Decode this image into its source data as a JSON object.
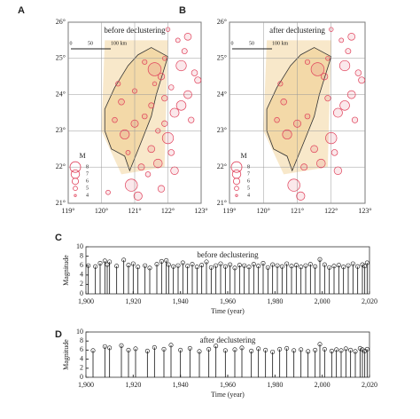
{
  "chart_data": [
    {
      "type": "scatter",
      "panel": "A",
      "title": "before declustering",
      "xlim": [
        119,
        123
      ],
      "ylim": [
        21,
        26
      ],
      "xticks": [
        {
          "value": 119,
          "label": "119°"
        },
        {
          "value": 120,
          "label": "120°"
        },
        {
          "value": 121,
          "label": "121°"
        },
        {
          "value": 122,
          "label": "122°"
        },
        {
          "value": 123,
          "label": "123°"
        }
      ],
      "yticks": [
        {
          "value": 21,
          "label": "21°"
        },
        {
          "value": 22,
          "label": "22°"
        },
        {
          "value": 23,
          "label": "23°"
        },
        {
          "value": 24,
          "label": "24°"
        },
        {
          "value": 25,
          "label": "25°"
        },
        {
          "value": 26,
          "label": "26°"
        }
      ],
      "grid": true,
      "color": "#e0405a",
      "scale_bar": [
        "0",
        "50",
        "100 km"
      ],
      "size_legend": {
        "title": "M",
        "values": [
          8,
          7,
          6,
          5,
          4
        ]
      },
      "x": [
        121.8,
        122.1,
        122.4,
        121.9,
        122.6,
        121.6,
        122.2,
        122.8,
        121.7,
        122.0,
        122.5,
        121.5,
        122.3,
        121.2,
        120.9,
        121.4,
        121.0,
        121.3,
        120.6,
        121.1,
        120.8,
        121.6,
        122.7,
        122.9,
        121.9,
        122.2,
        120.4,
        121.5,
        120.7,
        121.0,
        122.1,
        121.8,
        120.2,
        122.4,
        121.3,
        122.6,
        121.9,
        120.5,
        121.7,
        122.0
      ],
      "y": [
        24.5,
        24.2,
        24.8,
        23.9,
        24.0,
        24.3,
        23.5,
        24.6,
        23.0,
        22.8,
        25.2,
        22.5,
        25.5,
        22.0,
        21.5,
        21.8,
        23.2,
        24.9,
        23.8,
        21.2,
        22.4,
        24.7,
        23.3,
        24.4,
        25.0,
        21.9,
        23.3,
        23.7,
        22.9,
        24.1,
        22.4,
        21.4,
        21.3,
        23.7,
        23.4,
        25.6,
        23.2,
        24.3,
        22.1,
        25.8
      ],
      "sizes": [
        5.1,
        4.6,
        6.2,
        4.8,
        5.5,
        4.3,
        5.8,
        4.9,
        4.5,
        6.5,
        4.7,
        5.2,
        4.4,
        5.0,
        6.8,
        4.6,
        5.3,
        4.5,
        4.9,
        5.6,
        4.4,
        7.1,
        4.8,
        5.0,
        4.3,
        5.4,
        4.6,
        4.7,
        5.9,
        4.5,
        4.9,
        5.1,
        4.4,
        6.0,
        4.6,
        5.2,
        4.8,
        4.5,
        5.7,
        4.3
      ]
    },
    {
      "type": "scatter",
      "panel": "B",
      "title": "after declustering",
      "xlim": [
        119,
        123
      ],
      "ylim": [
        21,
        26
      ],
      "xticks": [
        {
          "value": 119,
          "label": "119°"
        },
        {
          "value": 120,
          "label": "120°"
        },
        {
          "value": 121,
          "label": "121°"
        },
        {
          "value": 122,
          "label": "122°"
        },
        {
          "value": 123,
          "label": "123°"
        }
      ],
      "yticks": [
        {
          "value": 21,
          "label": "21°"
        },
        {
          "value": 22,
          "label": "22°"
        },
        {
          "value": 23,
          "label": "23°"
        },
        {
          "value": 24,
          "label": "24°"
        },
        {
          "value": 25,
          "label": "25°"
        },
        {
          "value": 26,
          "label": "26°"
        }
      ],
      "grid": true,
      "color": "#e0405a",
      "scale_bar": [
        "0",
        "50",
        "100 km"
      ],
      "size_legend": {
        "title": "M",
        "values": [
          8,
          7,
          6,
          5,
          4
        ]
      },
      "x": [
        121.8,
        122.4,
        121.9,
        122.6,
        122.2,
        122.8,
        122.0,
        122.5,
        121.5,
        122.3,
        121.2,
        120.9,
        121.0,
        121.3,
        120.6,
        121.1,
        121.6,
        122.7,
        122.9,
        121.9,
        122.2,
        120.4,
        120.7,
        122.1,
        122.4,
        121.3,
        122.6,
        120.5,
        121.7,
        122.0
      ],
      "y": [
        24.5,
        24.8,
        23.9,
        24.0,
        23.5,
        24.6,
        22.8,
        25.2,
        22.5,
        25.5,
        22.0,
        21.5,
        23.2,
        24.9,
        23.8,
        21.2,
        24.7,
        23.3,
        24.4,
        25.0,
        21.9,
        23.3,
        22.9,
        22.4,
        23.7,
        23.4,
        25.6,
        24.3,
        22.1,
        25.8
      ],
      "sizes": [
        5.1,
        6.2,
        4.8,
        5.5,
        5.8,
        4.9,
        6.5,
        4.7,
        5.2,
        4.4,
        5.0,
        6.8,
        5.3,
        4.5,
        4.9,
        5.6,
        7.1,
        4.8,
        5.0,
        4.3,
        5.4,
        4.6,
        5.9,
        4.9,
        6.0,
        4.6,
        5.2,
        4.5,
        5.7,
        4.3
      ]
    },
    {
      "type": "stem",
      "panel": "C",
      "title": "before declustering",
      "xlabel": "Time (year)",
      "ylabel": "Magnitude",
      "xlim": [
        1900,
        2020
      ],
      "ylim": [
        0,
        10
      ],
      "xticks": [
        {
          "value": 1900,
          "label": "1,900"
        },
        {
          "value": 1920,
          "label": "1,920"
        },
        {
          "value": 1940,
          "label": "1,940"
        },
        {
          "value": 1960,
          "label": "1,960"
        },
        {
          "value": 1980,
          "label": "1,980"
        },
        {
          "value": 2000,
          "label": "2,000"
        },
        {
          "value": 2020,
          "label": "2,020"
        }
      ],
      "yticks": [
        0,
        2,
        4,
        6,
        8,
        10
      ],
      "x": [
        1901,
        1904,
        1906,
        1908,
        1909,
        1910,
        1913,
        1916,
        1918,
        1920,
        1922,
        1925,
        1927,
        1930,
        1932,
        1934,
        1935,
        1937,
        1939,
        1941,
        1943,
        1945,
        1947,
        1949,
        1951,
        1953,
        1955,
        1957,
        1959,
        1961,
        1963,
        1965,
        1967,
        1969,
        1971,
        1973,
        1975,
        1977,
        1979,
        1981,
        1983,
        1985,
        1987,
        1989,
        1991,
        1993,
        1995,
        1997,
        1999,
        2001,
        2003,
        2005,
        2007,
        2009,
        2011,
        2013,
        2015,
        2017,
        2018,
        2019
      ],
      "values": [
        6.0,
        5.8,
        6.5,
        7.0,
        6.2,
        6.8,
        5.9,
        7.2,
        6.1,
        6.4,
        5.7,
        6.0,
        5.5,
        6.3,
        6.9,
        7.1,
        6.2,
        5.8,
        6.0,
        6.6,
        5.9,
        6.3,
        5.7,
        6.1,
        6.8,
        5.6,
        6.0,
        6.4,
        5.8,
        6.2,
        5.5,
        6.1,
        6.0,
        5.7,
        6.3,
        5.9,
        6.5,
        5.6,
        6.2,
        6.0,
        5.8,
        6.4,
        5.9,
        6.1,
        5.7,
        6.0,
        6.3,
        5.8,
        7.3,
        6.2,
        5.6,
        5.9,
        6.1,
        5.7,
        6.0,
        6.4,
        5.8,
        6.2,
        5.9,
        6.6
      ]
    },
    {
      "type": "stem",
      "panel": "D",
      "title": "after declustering",
      "xlabel": "Time (year)",
      "ylabel": "Magnitude",
      "xlim": [
        1900,
        2020
      ],
      "ylim": [
        0,
        10
      ],
      "xticks": [
        {
          "value": 1900,
          "label": "1,900"
        },
        {
          "value": 1920,
          "label": "1,920"
        },
        {
          "value": 1940,
          "label": "1,940"
        },
        {
          "value": 1960,
          "label": "1,960"
        },
        {
          "value": 1980,
          "label": "1,980"
        },
        {
          "value": 2000,
          "label": "2,000"
        },
        {
          "value": 2020,
          "label": "2,020"
        }
      ],
      "yticks": [
        0,
        2,
        4,
        6,
        8,
        10
      ],
      "x": [
        1903,
        1908,
        1910,
        1915,
        1918,
        1921,
        1926,
        1929,
        1933,
        1936,
        1940,
        1944,
        1948,
        1952,
        1955,
        1959,
        1963,
        1966,
        1970,
        1973,
        1976,
        1979,
        1982,
        1985,
        1988,
        1991,
        1994,
        1997,
        1999,
        2001,
        2004,
        2006,
        2008,
        2010,
        2012,
        2014,
        2016,
        2017,
        2018,
        2019
      ],
      "values": [
        5.9,
        6.8,
        6.5,
        7.0,
        6.0,
        6.3,
        5.8,
        6.6,
        6.2,
        7.1,
        6.0,
        6.4,
        5.7,
        6.2,
        6.9,
        5.9,
        6.1,
        6.5,
        5.8,
        6.3,
        6.0,
        5.6,
        6.2,
        6.4,
        5.9,
        6.1,
        5.7,
        6.0,
        7.3,
        6.2,
        5.8,
        6.1,
        5.9,
        6.3,
        6.0,
        5.7,
        6.4,
        6.1,
        5.8,
        6.2
      ]
    }
  ]
}
